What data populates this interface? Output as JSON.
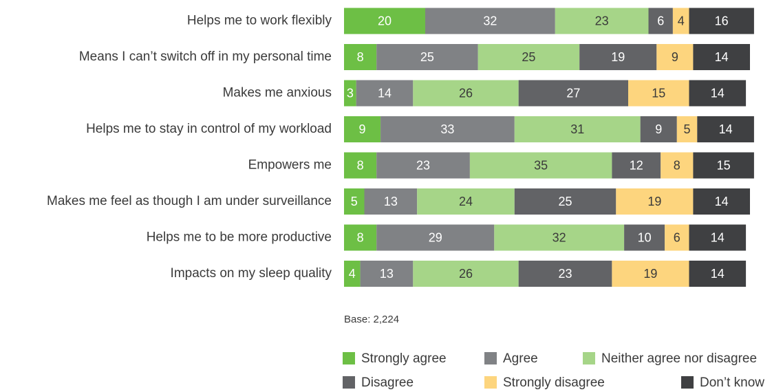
{
  "chart_data": {
    "type": "bar",
    "orientation": "horizontal",
    "stacked": true,
    "title": "",
    "xlabel": "",
    "ylabel": "",
    "categories": [
      "Helps me to work flexibly",
      "Means I can’t switch off in my personal time",
      "Makes me anxious",
      "Helps me to stay in control of my workload",
      "Empowers me",
      "Makes me feel as though I am under surveillance",
      "Helps me to be more productive",
      "Impacts on my sleep quality"
    ],
    "series": [
      {
        "name": "Strongly agree",
        "color": "#6dbf45",
        "label_color": "#ffffff",
        "values": [
          20,
          8,
          3,
          9,
          8,
          5,
          8,
          4
        ]
      },
      {
        "name": "Agree",
        "color": "#808285",
        "label_color": "#ffffff",
        "values": [
          32,
          25,
          14,
          33,
          23,
          13,
          29,
          13
        ]
      },
      {
        "name": "Neither agree nor disagree",
        "color": "#a6d588",
        "label_color": "#3a3a3a",
        "values": [
          23,
          25,
          26,
          31,
          35,
          24,
          32,
          26
        ]
      },
      {
        "name": "Disagree",
        "color": "#626366",
        "label_color": "#ffffff",
        "values": [
          6,
          19,
          27,
          9,
          12,
          25,
          10,
          23
        ]
      },
      {
        "name": "Strongly disagree",
        "color": "#fdd57e",
        "label_color": "#3a3a3a",
        "values": [
          4,
          9,
          15,
          5,
          8,
          19,
          6,
          19
        ]
      },
      {
        "name": "Don’t know",
        "color": "#3f4042",
        "label_color": "#ffffff",
        "values": [
          16,
          14,
          14,
          14,
          15,
          14,
          14,
          14
        ]
      }
    ],
    "legend_position": "bottom",
    "grid": false
  },
  "base_note": "Base: 2,224"
}
